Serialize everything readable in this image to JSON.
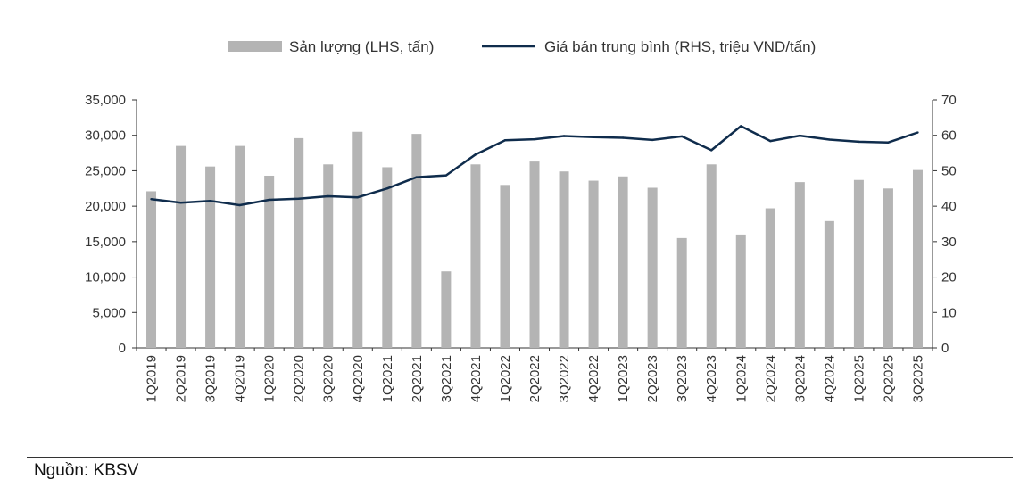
{
  "chart_data": {
    "type": "bar+line",
    "categories": [
      "1Q2019",
      "2Q2019",
      "3Q2019",
      "4Q2019",
      "1Q2020",
      "2Q2020",
      "3Q2020",
      "4Q2020",
      "1Q2021",
      "2Q2021",
      "3Q2021",
      "4Q2021",
      "1Q2022",
      "2Q2022",
      "3Q2022",
      "4Q2022",
      "1Q2023",
      "2Q2023",
      "3Q2023",
      "4Q2023",
      "1Q2024",
      "2Q2024",
      "3Q2024",
      "4Q2024",
      "1Q2025",
      "2Q2025",
      "3Q2025"
    ],
    "series": [
      {
        "name": "Sản lượng (LHS, tấn)",
        "type": "bar",
        "axis": "left",
        "color": "#b4b4b4",
        "values": [
          22100,
          28500,
          25600,
          28500,
          24300,
          29600,
          25900,
          30500,
          25500,
          30200,
          10800,
          25900,
          23000,
          26300,
          24900,
          23600,
          24200,
          22600,
          15500,
          25900,
          16000,
          19700,
          23400,
          17900,
          23700,
          22500,
          25100
        ]
      },
      {
        "name": "Giá bán trung bình (RHS, triệu VND/tấn)",
        "type": "line",
        "axis": "right",
        "color": "#0f2c4c",
        "values": [
          42.0,
          41.0,
          41.5,
          40.3,
          41.8,
          42.1,
          42.8,
          42.5,
          45.0,
          48.2,
          48.7,
          54.6,
          58.6,
          58.9,
          59.8,
          59.5,
          59.3,
          58.7,
          59.7,
          55.8,
          62.6,
          58.4,
          59.9,
          58.8,
          58.2,
          58.0,
          60.8
        ]
      }
    ],
    "y_left": {
      "min": 0,
      "max": 35000,
      "ticks": [
        "0",
        "5,000",
        "10,000",
        "15,000",
        "20,000",
        "25,000",
        "30,000",
        "35,000"
      ]
    },
    "y_right": {
      "min": 0,
      "max": 70,
      "ticks": [
        "0",
        "10",
        "20",
        "30",
        "40",
        "50",
        "60",
        "70"
      ]
    },
    "legend_position": "top-center",
    "grid": false
  },
  "source_note": "Nguồn: KBSV"
}
